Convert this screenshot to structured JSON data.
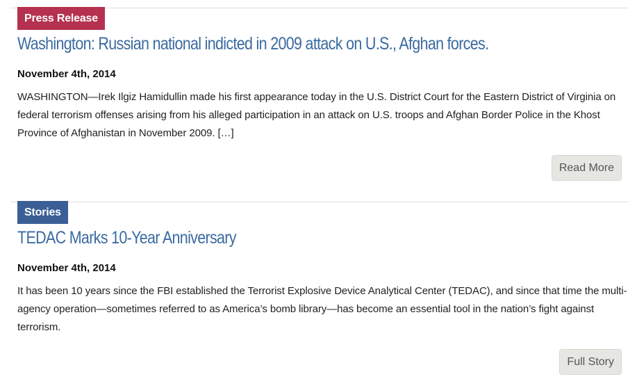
{
  "colors": {
    "press_release_badge": "#b5314f",
    "stories_badge": "#3a5f96",
    "headline_link": "#3b6aa0",
    "button_bg": "#e6e7e3"
  },
  "articles": [
    {
      "category": "Press Release",
      "title": "Washington: Russian national indicted in 2009 attack on U.S., Afghan forces.",
      "date": "November 4th, 2014",
      "summary": "WASHINGTON—Irek Ilgiz Hamidullin made his first appearance today in the U.S. District Court for the Eastern District of Virginia on federal terrorism offenses arising from his alleged participation in an attack on U.S. troops and Afghan Border Police in the Khost Province of Afghanistan in November 2009. […]",
      "button_label": "Read More"
    },
    {
      "category": "Stories",
      "title": "TEDAC Marks 10-Year Anniversary",
      "date": "November 4th, 2014",
      "summary": "It has been 10 years since the FBI established the Terrorist Explosive Device Analytical Center (TEDAC), and since that time the multi-agency operation—sometimes referred to as America’s bomb library—has become an essential tool in the nation’s fight against terrorism.",
      "button_label": "Full Story"
    }
  ]
}
